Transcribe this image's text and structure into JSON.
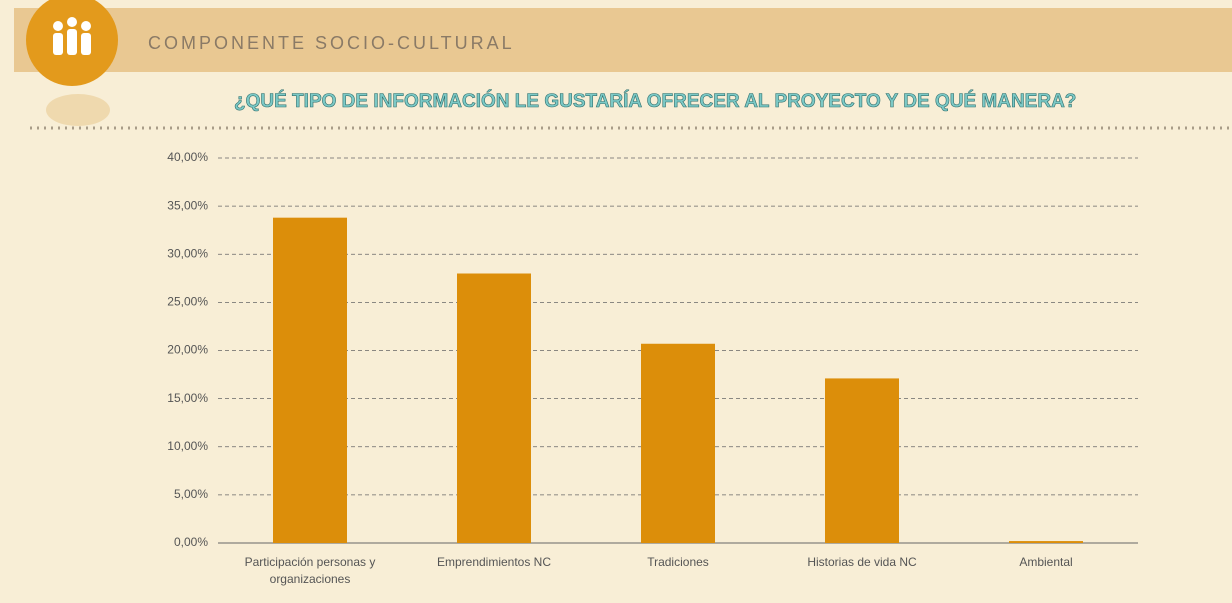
{
  "header": {
    "section": "COMPONENTE SOCIO-CULTURAL"
  },
  "chart_data": {
    "type": "bar",
    "title": "¿QUÉ TIPO DE INFORMACIÓN LE GUSTARÍA OFRECER AL PROYECTO Y DE QUÉ MANERA?",
    "categories": [
      "Participación personas y organizaciones",
      "Emprendimientos NC",
      "Tradiciones",
      "Historias de vida NC",
      "Ambiental"
    ],
    "values": [
      33.8,
      28.0,
      20.7,
      17.1,
      0.2
    ],
    "color": "#dc8e0a",
    "ylim": [
      0,
      40
    ],
    "yticks": [
      {
        "value": 0,
        "label": "0,00%"
      },
      {
        "value": 5,
        "label": "5,00%"
      },
      {
        "value": 10,
        "label": "10,00%"
      },
      {
        "value": 15,
        "label": "15,00%"
      },
      {
        "value": 20,
        "label": "20,00%"
      },
      {
        "value": 25,
        "label": "25,00%"
      },
      {
        "value": 30,
        "label": "30,00%"
      },
      {
        "value": 35,
        "label": "35,00%"
      },
      {
        "value": 40,
        "label": "40,00%"
      }
    ],
    "grid": true
  }
}
